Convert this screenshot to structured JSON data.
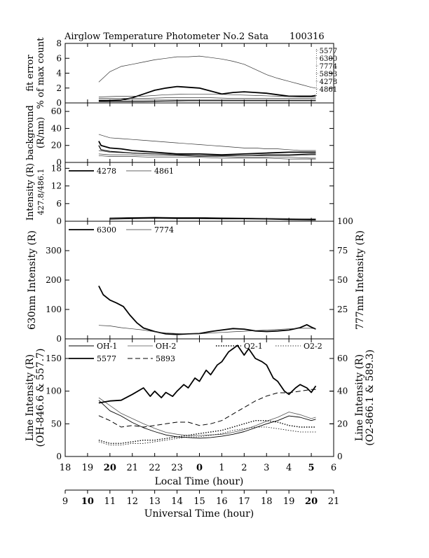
{
  "title": {
    "left": "Airglow Temperature Photometer No.2  Sata",
    "right": "100316"
  },
  "colors": {
    "ink": "#000000",
    "thin": "#444444"
  },
  "chart_data": [
    {
      "type": "line",
      "panel": "fit-error",
      "ylabel_top": "fit error",
      "ylabel_bottom": "% of max count",
      "ylim": [
        0,
        8
      ],
      "yticks": [
        "0",
        "2",
        "4",
        "6",
        "8"
      ],
      "end_labels": [
        "5577",
        "6300",
        "7774",
        "5893",
        "4278",
        "4861"
      ],
      "series": [
        {
          "style": "thin",
          "x": [
            19.5,
            20.0,
            20.5,
            21.0,
            21.5,
            22.0,
            22.5,
            23.0,
            23.5,
            24.0,
            24.5,
            25.0,
            25.5,
            26.0,
            26.5,
            27.0,
            27.5,
            28.0,
            28.5,
            29.0,
            29.2
          ],
          "values": [
            2.8,
            4.2,
            4.9,
            5.2,
            5.5,
            5.8,
            6.0,
            6.2,
            6.2,
            6.3,
            6.1,
            5.9,
            5.6,
            5.2,
            4.5,
            3.8,
            3.3,
            2.9,
            2.5,
            2.1,
            2.0
          ]
        },
        {
          "style": "thick",
          "x": [
            19.5,
            20.0,
            20.5,
            21.0,
            21.5,
            22.0,
            22.5,
            23.0,
            23.5,
            24.0,
            24.5,
            25.0,
            25.5,
            26.0,
            26.5,
            27.0,
            27.5,
            28.0,
            28.5,
            29.0,
            29.2
          ],
          "values": [
            0.3,
            0.35,
            0.4,
            0.7,
            1.2,
            1.7,
            2.0,
            2.2,
            2.1,
            2.0,
            1.6,
            1.2,
            1.4,
            1.5,
            1.4,
            1.3,
            1.1,
            0.9,
            0.9,
            0.9,
            1.0
          ]
        },
        {
          "style": "thin",
          "x": [
            19.5,
            20.5,
            21.5,
            22.5,
            23.5,
            24.5,
            25.5,
            26.5,
            27.5,
            28.5,
            29.2
          ],
          "values": [
            0.8,
            0.9,
            0.9,
            1.1,
            1.2,
            1.2,
            1.1,
            1.0,
            0.9,
            0.8,
            0.8
          ]
        },
        {
          "style": "thin",
          "x": [
            19.5,
            20.5,
            21.5,
            22.5,
            23.5,
            24.5,
            25.5,
            26.5,
            27.5,
            28.5,
            29.2
          ],
          "values": [
            0.6,
            0.6,
            0.6,
            0.7,
            0.7,
            0.7,
            0.6,
            0.6,
            0.6,
            0.6,
            0.6
          ]
        },
        {
          "style": "thin",
          "x": [
            19.5,
            20.5,
            21.5,
            22.5,
            23.5,
            24.5,
            25.5,
            26.5,
            27.5,
            28.5,
            29.2
          ],
          "values": [
            0.4,
            0.4,
            0.4,
            0.4,
            0.4,
            0.4,
            0.4,
            0.4,
            0.4,
            0.4,
            0.4
          ]
        },
        {
          "style": "medium",
          "x": [
            19.5,
            20.5,
            21.5,
            22.5,
            23.5,
            24.5,
            25.5,
            26.5,
            27.5,
            28.5,
            29.2
          ],
          "values": [
            0.2,
            0.2,
            0.2,
            0.25,
            0.3,
            0.3,
            0.3,
            0.3,
            0.3,
            0.3,
            0.3
          ]
        }
      ]
    },
    {
      "type": "line",
      "panel": "background",
      "ylabel_top": "background",
      "ylabel_bottom": "(R/nm)",
      "ylim": [
        0,
        70
      ],
      "yticks": [
        "0",
        "20",
        "40",
        "60"
      ],
      "series": [
        {
          "style": "thin",
          "x": [
            19.5,
            20.0,
            20.5,
            21.0,
            21.5,
            22.0,
            22.5,
            23.0,
            23.5,
            24.0,
            24.5,
            25.0,
            25.5,
            26.0,
            26.5,
            27.0,
            27.5,
            28.0,
            28.5,
            29.0,
            29.2
          ],
          "values": [
            33,
            29,
            28,
            27,
            26,
            25,
            24,
            23,
            22,
            21,
            20,
            19,
            18,
            17,
            17,
            16,
            16,
            15,
            14,
            14,
            14
          ]
        },
        {
          "style": "thick",
          "x": [
            19.5,
            19.6,
            20.0,
            20.5,
            21.0,
            21.5,
            22.0,
            23.0,
            24.0,
            25.0,
            26.0,
            27.0,
            28.0,
            29.0,
            29.2
          ],
          "values": [
            25,
            20,
            17,
            16,
            14,
            13,
            12,
            10,
            10,
            9,
            10,
            11,
            12,
            12,
            12
          ]
        },
        {
          "style": "medium",
          "x": [
            19.5,
            19.6,
            20.0,
            20.5,
            21.0,
            22.0,
            23.0,
            24.0,
            25.0,
            26.0,
            27.0,
            28.0,
            29.0,
            29.2
          ],
          "values": [
            20,
            15,
            13,
            12,
            11,
            10,
            9,
            8,
            8,
            8,
            9,
            9,
            10,
            10
          ]
        },
        {
          "style": "thin",
          "x": [
            19.5,
            20.0,
            21.0,
            22.0,
            23.0,
            24.0,
            25.0,
            26.0,
            27.0,
            28.0,
            29.0,
            29.2
          ],
          "values": [
            14,
            12,
            11,
            10,
            9,
            8,
            8,
            8,
            8,
            8,
            9,
            9
          ]
        },
        {
          "style": "thin",
          "x": [
            19.5,
            20.0,
            21.0,
            22.0,
            23.0,
            24.0,
            25.0,
            26.0,
            27.0,
            28.0,
            29.0,
            29.2
          ],
          "values": [
            10,
            9,
            9,
            8,
            8,
            7,
            7,
            6,
            6,
            6,
            5,
            5
          ]
        },
        {
          "style": "thin",
          "x": [
            19.5,
            20.0,
            21.0,
            22.0,
            23.0,
            24.0,
            25.0,
            26.0,
            27.0,
            28.0,
            29.0,
            29.2
          ],
          "values": [
            8,
            7,
            7,
            6,
            6,
            6,
            5,
            5,
            5,
            4,
            4,
            4
          ]
        }
      ]
    },
    {
      "type": "line",
      "panel": "427.8/486.1",
      "ylabel_top": "Intensity (R)",
      "ylabel_bottom": "427.8/486.1",
      "ylim": [
        0,
        20
      ],
      "yticks": [
        "0",
        "6",
        "12",
        "18"
      ],
      "legend": [
        {
          "name": "4278",
          "style": "thick"
        },
        {
          "name": "4861",
          "style": "thin"
        }
      ],
      "series": [
        {
          "name": "4278",
          "style": "thick",
          "x": [
            20.0,
            21.0,
            22.0,
            23.0,
            24.0,
            25.0,
            26.0,
            27.0,
            28.0,
            29.0,
            29.2
          ],
          "values": [
            0.8,
            1.0,
            1.1,
            1.0,
            1.0,
            0.9,
            0.9,
            0.8,
            0.6,
            0.5,
            0.5
          ]
        },
        {
          "name": "4861",
          "style": "thin",
          "x": [
            20.0,
            21.0,
            22.0,
            23.0,
            24.0,
            25.0,
            26.0,
            27.0,
            28.0,
            29.0,
            29.2
          ],
          "values": [
            1.2,
            1.3,
            1.4,
            1.3,
            1.3,
            1.2,
            1.1,
            1.0,
            0.9,
            0.8,
            0.8
          ]
        }
      ]
    },
    {
      "type": "line",
      "panel": "630/777",
      "ylabel": "630nm Intensity (R)",
      "ylabel_right": "777nm Intensity (R)",
      "ylim": [
        0,
        400
      ],
      "yticks": [
        "0",
        "100",
        "200",
        "300"
      ],
      "ylim_right": [
        0,
        100
      ],
      "yticks_right": [
        "25",
        "50",
        "75",
        "100"
      ],
      "legend": [
        {
          "name": "6300",
          "style": "thick"
        },
        {
          "name": "7774",
          "style": "thin"
        }
      ],
      "series": [
        {
          "name": "6300",
          "axis": "left",
          "style": "thick",
          "x": [
            19.5,
            19.7,
            20.0,
            20.3,
            20.6,
            20.9,
            21.2,
            21.5,
            22.0,
            22.5,
            23.0,
            23.5,
            24.0,
            24.5,
            25.0,
            25.5,
            26.0,
            26.5,
            27.0,
            27.5,
            28.0,
            28.5,
            28.8,
            29.0,
            29.2
          ],
          "values": [
            180,
            150,
            132,
            122,
            110,
            80,
            55,
            37,
            25,
            17,
            15,
            17,
            18,
            25,
            30,
            35,
            33,
            27,
            25,
            27,
            30,
            38,
            48,
            40,
            33
          ]
        },
        {
          "name": "7774",
          "axis": "right",
          "style": "thin",
          "x": [
            19.5,
            20.0,
            20.5,
            21.0,
            21.5,
            22.0,
            22.5,
            23.0,
            23.5,
            24.0,
            24.5,
            25.0,
            25.5,
            26.0,
            26.5,
            27.0,
            27.5,
            28.0,
            28.5,
            29.0,
            29.2
          ],
          "values": [
            11.5,
            11,
            9.5,
            8.5,
            7.5,
            6,
            5,
            4.5,
            4.2,
            4.2,
            5,
            5.5,
            6,
            6.5,
            7,
            7.5,
            8,
            8.5,
            9,
            9,
            8.5
          ]
        }
      ]
    },
    {
      "type": "line",
      "panel": "line-intensity",
      "ylabel_top": "Line Intensity (R)",
      "ylabel_bottom": "(OH-846.6 & 557.7)",
      "ylabel_right_top": "Line Intensity (R)",
      "ylabel_right_bottom": "(O2-866.1 & 589.3)",
      "ylim": [
        0,
        180
      ],
      "yticks": [
        "0",
        "50",
        "100",
        "150"
      ],
      "ylim_right": [
        0,
        72
      ],
      "yticks_right": [
        "0",
        "20",
        "40",
        "60"
      ],
      "legend": [
        {
          "name": "OH-1",
          "style": "thin-solid"
        },
        {
          "name": "OH-2",
          "style": "gray-solid"
        },
        {
          "name": "O2-1",
          "style": "dotted-thick"
        },
        {
          "name": "O2-2",
          "style": "dotted-thin"
        },
        {
          "name": "5577",
          "style": "thick"
        },
        {
          "name": "5893",
          "style": "dashed"
        }
      ],
      "series": [
        {
          "name": "OH-1",
          "axis": "left",
          "style": "thin-solid",
          "x": [
            19.5,
            20.0,
            20.5,
            21.0,
            21.5,
            22.0,
            22.5,
            23.0,
            23.5,
            24.0,
            24.5,
            25.0,
            25.5,
            26.0,
            26.5,
            27.0,
            27.5,
            28.0,
            28.5,
            29.0,
            29.2
          ],
          "values": [
            86,
            70,
            62,
            52,
            44,
            38,
            33,
            30,
            29,
            28,
            29,
            31,
            34,
            38,
            44,
            50,
            55,
            62,
            60,
            55,
            57
          ]
        },
        {
          "name": "OH-2",
          "axis": "left",
          "style": "gray-solid",
          "x": [
            19.5,
            20.0,
            20.5,
            21.0,
            21.5,
            22.0,
            22.5,
            23.0,
            23.5,
            24.0,
            24.5,
            25.0,
            25.5,
            26.0,
            26.5,
            27.0,
            27.5,
            28.0,
            28.5,
            29.0,
            29.2
          ],
          "values": [
            90,
            78,
            66,
            58,
            50,
            43,
            37,
            34,
            32,
            32,
            33,
            34,
            37,
            41,
            47,
            54,
            60,
            68,
            64,
            58,
            60
          ]
        },
        {
          "name": "5577",
          "axis": "left",
          "style": "thick",
          "x": [
            19.5,
            20.0,
            20.5,
            21.0,
            21.5,
            21.8,
            22.0,
            22.3,
            22.5,
            22.8,
            23.0,
            23.3,
            23.5,
            23.8,
            24.0,
            24.3,
            24.5,
            24.8,
            25.0,
            25.3,
            25.5,
            25.7,
            26.0,
            26.2,
            26.5,
            26.8,
            27.0,
            27.3,
            27.5,
            27.8,
            28.0,
            28.3,
            28.5,
            28.8,
            29.0,
            29.2
          ],
          "values": [
            82,
            85,
            86,
            95,
            105,
            92,
            100,
            90,
            98,
            92,
            100,
            110,
            105,
            120,
            115,
            132,
            125,
            140,
            145,
            160,
            165,
            170,
            155,
            165,
            150,
            145,
            140,
            120,
            115,
            100,
            95,
            105,
            110,
            105,
            98,
            108
          ]
        },
        {
          "name": "5893",
          "axis": "right",
          "style": "dashed",
          "x": [
            19.5,
            20.0,
            20.5,
            21.0,
            21.5,
            22.0,
            22.5,
            23.0,
            23.5,
            24.0,
            24.5,
            25.0,
            25.5,
            26.0,
            26.5,
            27.0,
            27.5,
            28.0,
            28.5,
            29.0,
            29.2
          ],
          "values": [
            25,
            22,
            18,
            19,
            18,
            19,
            20,
            21,
            21,
            19,
            20,
            22,
            26,
            30,
            34,
            37,
            39,
            39,
            40,
            41,
            41
          ]
        },
        {
          "name": "O2-1",
          "axis": "right",
          "style": "dotted-thick",
          "x": [
            19.5,
            20.0,
            20.5,
            21.0,
            21.5,
            22.0,
            22.5,
            23.0,
            23.5,
            24.0,
            24.5,
            25.0,
            25.5,
            26.0,
            26.5,
            27.0,
            27.5,
            28.0,
            28.5,
            29.0,
            29.2
          ],
          "values": [
            10,
            8,
            8,
            9,
            10,
            10,
            11,
            12,
            13,
            14,
            15,
            16,
            18,
            20,
            22,
            22,
            21,
            19,
            18,
            18,
            18
          ]
        },
        {
          "name": "O2-2",
          "axis": "right",
          "style": "dotted-thin",
          "x": [
            19.5,
            20.0,
            20.5,
            21.0,
            21.5,
            22.0,
            22.5,
            23.0,
            23.5,
            24.0,
            24.5,
            25.0,
            25.5,
            26.0,
            26.5,
            27.0,
            27.5,
            28.0,
            28.5,
            29.0,
            29.2
          ],
          "values": [
            9,
            7,
            7,
            8,
            8,
            9,
            10,
            11,
            12,
            12,
            13,
            14,
            16,
            17,
            18,
            18,
            17,
            16,
            15,
            15,
            15
          ]
        }
      ]
    }
  ],
  "x_axes": {
    "local": {
      "label": "Local Time (hour)",
      "ticks": [
        "18",
        "19",
        "20",
        "21",
        "22",
        "23",
        "0",
        "1",
        "2",
        "3",
        "4",
        "5",
        "6"
      ],
      "bold": [
        "20",
        "0",
        "5"
      ]
    },
    "universal": {
      "label": "Universal Time (hour)",
      "ticks": [
        "9",
        "10",
        "11",
        "12",
        "13",
        "14",
        "15",
        "16",
        "17",
        "18",
        "19",
        "20",
        "21"
      ],
      "bold": [
        "10",
        "20"
      ]
    }
  }
}
